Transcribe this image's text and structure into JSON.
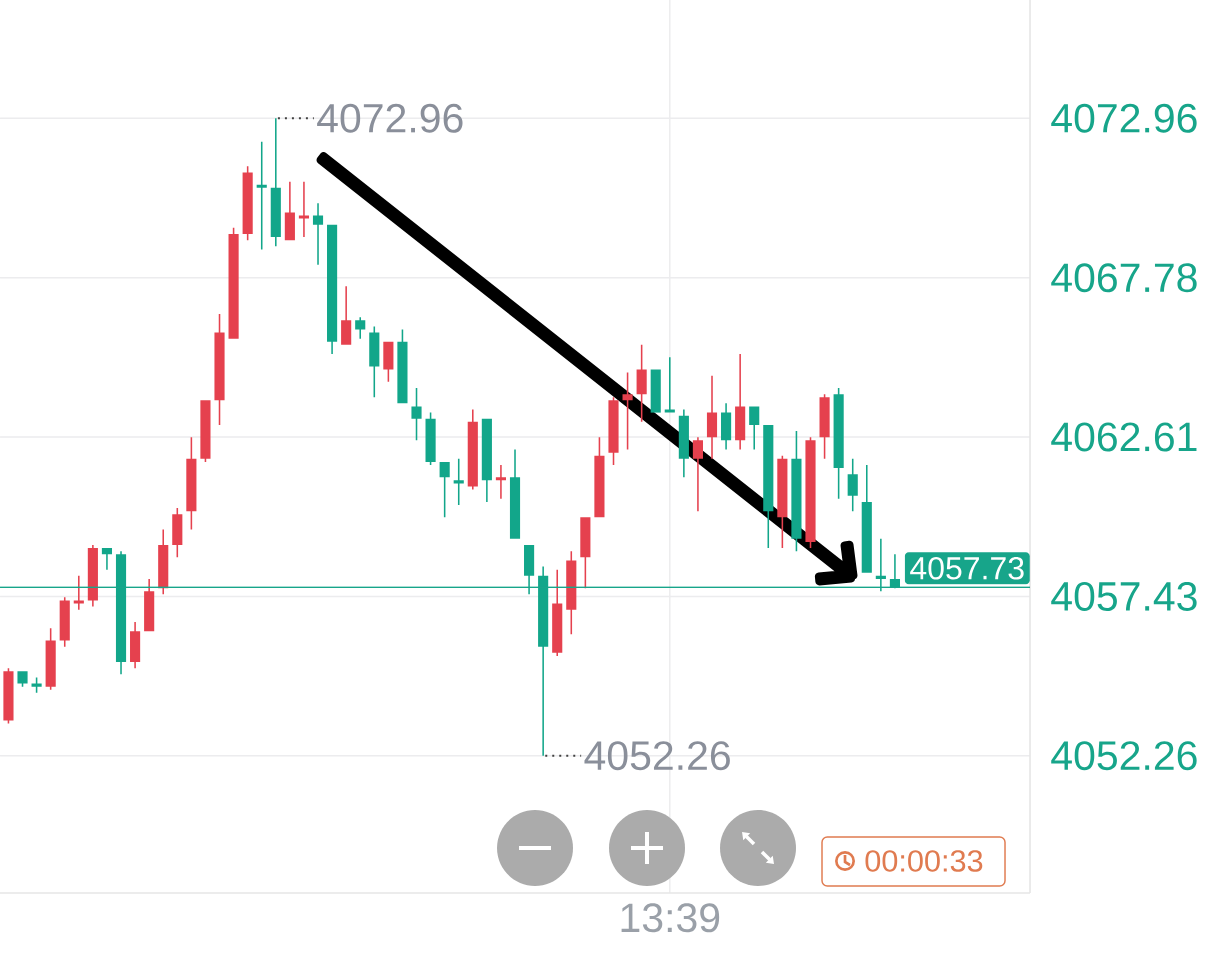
{
  "chart_data": {
    "type": "candlestick",
    "categories": [
      null,
      null,
      null,
      null,
      null,
      null,
      null,
      null,
      null,
      null,
      null,
      null,
      null,
      null,
      null,
      null,
      null,
      null,
      null,
      null,
      null,
      null,
      null,
      null,
      null,
      null,
      null,
      null,
      null,
      null,
      null,
      null,
      null,
      null,
      null,
      null,
      null,
      null,
      null,
      null,
      null,
      null,
      null,
      null,
      null,
      null,
      null,
      "13:39",
      null,
      null,
      null,
      null,
      null,
      null,
      null,
      null,
      null,
      null,
      null,
      null,
      null,
      null,
      null,
      null
    ],
    "ohlc": [
      [
        4053.4,
        4055.1,
        4053.3,
        4055.0
      ],
      [
        4055.0,
        4055.0,
        4054.5,
        4054.6
      ],
      [
        4054.6,
        4054.8,
        4054.3,
        4054.5
      ],
      [
        4054.5,
        4056.4,
        4054.4,
        4056.0
      ],
      [
        4056.0,
        4057.4,
        4055.8,
        4057.3
      ],
      [
        4057.2,
        4058.1,
        4057.0,
        4057.3
      ],
      [
        4057.3,
        4059.1,
        4057.1,
        4059.0
      ],
      [
        4059.0,
        4059.0,
        4058.3,
        4058.8
      ],
      [
        4058.8,
        4058.9,
        4054.9,
        4055.3
      ],
      [
        4055.3,
        4056.6,
        4055.1,
        4056.3
      ],
      [
        4056.3,
        4058.0,
        4056.3,
        4057.6
      ],
      [
        4057.7,
        4059.6,
        4057.5,
        4059.1
      ],
      [
        4059.1,
        4060.3,
        4058.7,
        4060.1
      ],
      [
        4060.2,
        4062.6,
        4059.6,
        4061.9
      ],
      [
        4061.9,
        4063.8,
        4061.8,
        4063.8
      ],
      [
        4063.8,
        4066.6,
        4063.0,
        4066.0
      ],
      [
        4065.8,
        4069.4,
        4065.8,
        4069.2
      ],
      [
        4069.2,
        4071.4,
        4069.0,
        4071.2
      ],
      [
        4070.8,
        4072.2,
        4068.7,
        4070.7
      ],
      [
        4070.7,
        4072.96,
        4068.8,
        4069.1
      ],
      [
        4069.0,
        4070.9,
        4069.0,
        4069.9
      ],
      [
        4069.7,
        4070.9,
        4069.1,
        4069.8
      ],
      [
        4069.8,
        4070.2,
        4068.2,
        4069.5
      ],
      [
        4069.5,
        4069.5,
        4065.3,
        4065.7
      ],
      [
        4065.6,
        4067.5,
        4065.6,
        4066.4
      ],
      [
        4066.4,
        4066.5,
        4065.8,
        4066.1
      ],
      [
        4066.0,
        4066.2,
        4063.9,
        4064.9
      ],
      [
        4064.8,
        4065.7,
        4064.4,
        4065.7
      ],
      [
        4065.7,
        4066.1,
        4063.7,
        4063.7
      ],
      [
        4063.6,
        4064.2,
        4062.5,
        4063.2
      ],
      [
        4063.2,
        4063.4,
        4061.7,
        4061.8
      ],
      [
        4061.8,
        4061.8,
        4060.0,
        4061.3
      ],
      [
        4061.2,
        4061.9,
        4060.4,
        4061.1
      ],
      [
        4061.0,
        4063.5,
        4060.9,
        4063.1
      ],
      [
        4063.2,
        4063.2,
        4060.5,
        4061.2
      ],
      [
        4061.2,
        4061.7,
        4060.6,
        4061.3
      ],
      [
        4061.3,
        4062.2,
        4059.3,
        4059.3
      ],
      [
        4059.1,
        4059.1,
        4057.5,
        4058.1
      ],
      [
        4058.1,
        4058.4,
        4052.26,
        4055.8
      ],
      [
        4055.6,
        4058.3,
        4055.5,
        4057.2
      ],
      [
        4057.0,
        4058.9,
        4056.2,
        4058.6
      ],
      [
        4058.7,
        4060.0,
        4057.7,
        4060.0
      ],
      [
        4060.0,
        4062.6,
        4060.0,
        4062.0
      ],
      [
        4062.1,
        4063.9,
        4061.7,
        4063.8
      ],
      [
        4063.8,
        4064.7,
        4062.2,
        4064.0
      ],
      [
        4064.0,
        4065.6,
        4063.1,
        4064.8
      ],
      [
        4064.8,
        4064.8,
        4063.4,
        4063.4
      ],
      [
        4063.5,
        4065.2,
        4063.4,
        4063.4
      ],
      [
        4063.3,
        4063.5,
        4061.3,
        4061.9
      ],
      [
        4061.9,
        4062.6,
        4060.2,
        4062.5
      ],
      [
        4062.6,
        4064.6,
        4061.9,
        4063.4
      ],
      [
        4063.4,
        4063.7,
        4062.2,
        4062.5
      ],
      [
        4062.5,
        4065.3,
        4062.2,
        4063.6
      ],
      [
        4063.6,
        4063.6,
        4062.2,
        4063.0
      ],
      [
        4063.0,
        4063.0,
        4059.0,
        4060.2
      ],
      [
        4060.0,
        4062.0,
        4059.0,
        4061.9
      ],
      [
        4061.9,
        4062.8,
        4058.9,
        4059.3
      ],
      [
        4059.2,
        4062.6,
        4059.0,
        4062.5
      ],
      [
        4062.6,
        4064.0,
        4061.9,
        4063.9
      ],
      [
        4064.0,
        4064.2,
        4060.6,
        4061.6
      ],
      [
        4061.4,
        4061.9,
        4060.2,
        4060.7
      ],
      [
        4060.5,
        4061.7,
        4058.2,
        4058.2
      ],
      [
        4058.1,
        4059.3,
        4057.6,
        4058.0
      ],
      [
        4058.0,
        4058.8,
        4057.7,
        4057.73
      ]
    ],
    "colors": [
      "#e5414e",
      "#12a68a",
      "#12a68a",
      "#e5414e",
      "#e5414e",
      "#e5414e",
      "#e5414e",
      "#12a68a",
      "#12a68a",
      "#e5414e",
      "#e5414e",
      "#e5414e",
      "#e5414e",
      "#e5414e",
      "#e5414e",
      "#e5414e",
      "#e5414e",
      "#e5414e",
      "#12a68a",
      "#12a68a",
      "#e5414e",
      "#e5414e",
      "#12a68a",
      "#12a68a",
      "#e5414e",
      "#12a68a",
      "#12a68a",
      "#e5414e",
      "#12a68a",
      "#12a68a",
      "#12a68a",
      "#12a68a",
      "#12a68a",
      "#e5414e",
      "#12a68a",
      "#e5414e",
      "#12a68a",
      "#12a68a",
      "#12a68a",
      "#e5414e",
      "#e5414e",
      "#e5414e",
      "#e5414e",
      "#e5414e",
      "#e5414e",
      "#e5414e",
      "#12a68a",
      "#12a68a",
      "#12a68a",
      "#e5414e",
      "#e5414e",
      "#12a68a",
      "#e5414e",
      "#12a68a",
      "#12a68a",
      "#e5414e",
      "#12a68a",
      "#e5414e",
      "#e5414e",
      "#12a68a",
      "#12a68a",
      "#12a68a",
      "#12a68a",
      "#12a68a"
    ],
    "ylim": [
      4047.8,
      4076.8
    ],
    "yticks": [
      4072.96,
      4067.78,
      4062.61,
      4057.43,
      4052.26
    ],
    "grid": true,
    "ref_lines": [
      {
        "axis": "y",
        "value": 4057.73,
        "label": "4057.73",
        "color": "#17a58a"
      }
    ],
    "annotations": [
      "4072.96",
      "4052.26",
      "00:00:33"
    ]
  }
}
